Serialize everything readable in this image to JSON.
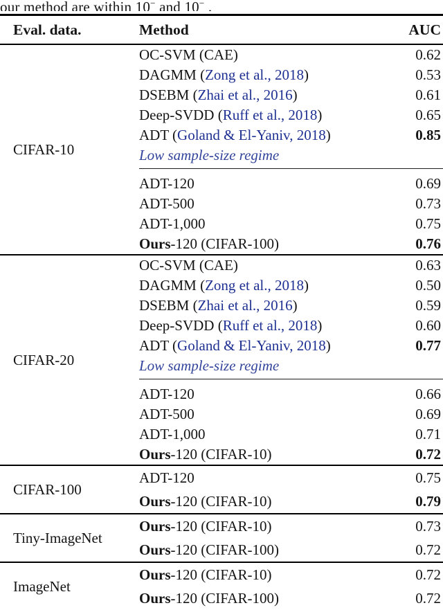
{
  "caption": {
    "prefix": "our method are within 10",
    "sup1": "−",
    "mid": " and 10",
    "sup2": "−",
    "suffix": " ."
  },
  "colors": {
    "text": "#141414",
    "citation_blue": "#1e3092",
    "note_blue": "#32439b",
    "rule_black": "#000000"
  },
  "table": {
    "headers": {
      "eval_data": "Eval. data.",
      "method": "Method",
      "auc": "AUC"
    },
    "sections": [
      {
        "dataset": "CIFAR-10",
        "rows": [
          {
            "method": [
              {
                "t": "OC-SVM (CAE)",
                "s": "plain"
              }
            ],
            "auc": "0.62",
            "bold": false
          },
          {
            "method": [
              {
                "t": "DAGMM (",
                "s": "plain"
              },
              {
                "t": "Zong et al., 2018",
                "s": "cite"
              },
              {
                "t": ")",
                "s": "plain"
              }
            ],
            "auc": "0.53",
            "bold": false
          },
          {
            "method": [
              {
                "t": "DSEBM (",
                "s": "plain"
              },
              {
                "t": "Zhai et al., 2016",
                "s": "cite"
              },
              {
                "t": ")",
                "s": "plain"
              }
            ],
            "auc": "0.61",
            "bold": false
          },
          {
            "method": [
              {
                "t": "Deep-SVDD (",
                "s": "plain"
              },
              {
                "t": "Ruff et al., 2018",
                "s": "cite"
              },
              {
                "t": ")",
                "s": "plain"
              }
            ],
            "auc": "0.65",
            "bold": false
          },
          {
            "method": [
              {
                "t": "ADT (",
                "s": "plain"
              },
              {
                "t": "Goland & El-Yaniv, 2018",
                "s": "cite"
              },
              {
                "t": ")",
                "s": "plain"
              }
            ],
            "auc": "0.85",
            "bold": true
          },
          {
            "method": [
              {
                "t": "Low sample-size regime",
                "s": "note"
              }
            ],
            "auc": null,
            "bold": false,
            "noterow": true
          },
          {
            "method": [
              {
                "t": "ADT-120",
                "s": "plain"
              }
            ],
            "auc": "0.69",
            "bold": false,
            "group_start": true
          },
          {
            "method": [
              {
                "t": "ADT-500",
                "s": "plain"
              }
            ],
            "auc": "0.73",
            "bold": false
          },
          {
            "method": [
              {
                "t": "ADT-1,000",
                "s": "plain"
              }
            ],
            "auc": "0.75",
            "bold": false
          },
          {
            "method": [
              {
                "t": "Ours",
                "s": "bold"
              },
              {
                "t": "-120 (CIFAR-100)",
                "s": "plain"
              }
            ],
            "auc": "0.76",
            "bold": true
          }
        ]
      },
      {
        "dataset": "CIFAR-20",
        "rows": [
          {
            "method": [
              {
                "t": "OC-SVM (CAE)",
                "s": "plain"
              }
            ],
            "auc": "0.63",
            "bold": false
          },
          {
            "method": [
              {
                "t": "DAGMM (",
                "s": "plain"
              },
              {
                "t": "Zong et al., 2018",
                "s": "cite"
              },
              {
                "t": ")",
                "s": "plain"
              }
            ],
            "auc": "0.50",
            "bold": false
          },
          {
            "method": [
              {
                "t": "DSEBM (",
                "s": "plain"
              },
              {
                "t": "Zhai et al., 2016",
                "s": "cite"
              },
              {
                "t": ")",
                "s": "plain"
              }
            ],
            "auc": "0.59",
            "bold": false
          },
          {
            "method": [
              {
                "t": "Deep-SVDD (",
                "s": "plain"
              },
              {
                "t": "Ruff et al., 2018",
                "s": "cite"
              },
              {
                "t": ")",
                "s": "plain"
              }
            ],
            "auc": "0.60",
            "bold": false
          },
          {
            "method": [
              {
                "t": "ADT (",
                "s": "plain"
              },
              {
                "t": "Goland & El-Yaniv, 2018",
                "s": "cite"
              },
              {
                "t": ")",
                "s": "plain"
              }
            ],
            "auc": "0.77",
            "bold": true
          },
          {
            "method": [
              {
                "t": "Low sample-size regime",
                "s": "note"
              }
            ],
            "auc": null,
            "bold": false,
            "noterow": true
          },
          {
            "method": [
              {
                "t": "ADT-120",
                "s": "plain"
              }
            ],
            "auc": "0.66",
            "bold": false,
            "group_start": true
          },
          {
            "method": [
              {
                "t": "ADT-500",
                "s": "plain"
              }
            ],
            "auc": "0.69",
            "bold": false
          },
          {
            "method": [
              {
                "t": "ADT-1,000",
                "s": "plain"
              }
            ],
            "auc": "0.71",
            "bold": false
          },
          {
            "method": [
              {
                "t": "Ours",
                "s": "bold"
              },
              {
                "t": "-120 (CIFAR-10)",
                "s": "plain"
              }
            ],
            "auc": "0.72",
            "bold": true
          }
        ]
      },
      {
        "dataset": "CIFAR-100",
        "short": true,
        "rows": [
          {
            "method": [
              {
                "t": "ADT-120",
                "s": "plain"
              }
            ],
            "auc": "0.75",
            "bold": false
          },
          {
            "method": [
              {
                "t": "Ours",
                "s": "bold"
              },
              {
                "t": "-120 (CIFAR-10)",
                "s": "plain"
              }
            ],
            "auc": "0.79",
            "bold": true
          }
        ]
      },
      {
        "dataset": "Tiny-ImageNet",
        "short": true,
        "rows": [
          {
            "method": [
              {
                "t": "Ours",
                "s": "bold"
              },
              {
                "t": "-120 (CIFAR-10)",
                "s": "plain"
              }
            ],
            "auc": "0.73",
            "bold": false
          },
          {
            "method": [
              {
                "t": "Ours",
                "s": "bold"
              },
              {
                "t": "-120 (CIFAR-100)",
                "s": "plain"
              }
            ],
            "auc": "0.72",
            "bold": false
          }
        ]
      },
      {
        "dataset": "ImageNet",
        "short": true,
        "rows": [
          {
            "method": [
              {
                "t": "Ours",
                "s": "bold"
              },
              {
                "t": "-120 (CIFAR-10)",
                "s": "plain"
              }
            ],
            "auc": "0.72",
            "bold": false
          },
          {
            "method": [
              {
                "t": "Ours",
                "s": "bold"
              },
              {
                "t": "-120 (CIFAR-100)",
                "s": "plain"
              }
            ],
            "auc": "0.72",
            "bold": false
          }
        ]
      }
    ]
  }
}
